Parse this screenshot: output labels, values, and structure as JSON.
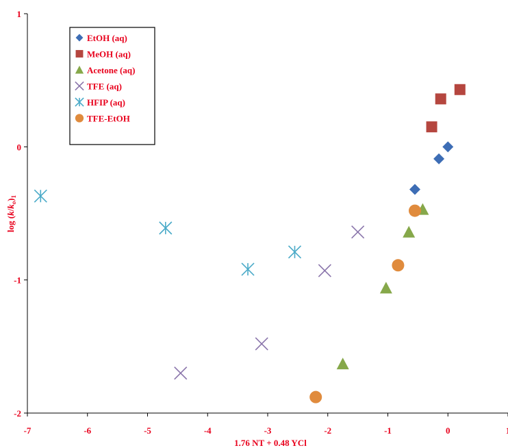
{
  "chart_data": {
    "type": "scatter",
    "title": "",
    "xlabel": "1.76 NT + 0.48 YCl",
    "ylabel": "log (k/ko)1",
    "ylabel_parts": {
      "pre": "log (",
      "k": "k",
      "slash": "/",
      "ko": "k",
      "o_sub": "o",
      "post": ")",
      "sub": "1"
    },
    "xlim": [
      -7,
      1
    ],
    "ylim": [
      -2,
      1
    ],
    "x_ticks": [
      -7,
      -6,
      -5,
      -4,
      -3,
      -2,
      -1,
      0,
      1
    ],
    "y_ticks": [
      -2,
      -1,
      0,
      1
    ],
    "grid": false,
    "legend_position": "top-left",
    "series": [
      {
        "name": "EtOH (aq)",
        "marker": "diamond",
        "color": "#3d6db5",
        "x": [
          -0.55,
          -0.15,
          0.0
        ],
        "y": [
          -0.32,
          -0.09,
          0.0
        ]
      },
      {
        "name": "MeOH (aq)",
        "marker": "square",
        "color": "#b5463f",
        "x": [
          -0.27,
          -0.12,
          0.2
        ],
        "y": [
          0.15,
          0.36,
          0.43
        ]
      },
      {
        "name": "Acetone (aq)",
        "marker": "triangle",
        "color": "#86a84a",
        "x": [
          -1.75,
          -1.03,
          -0.65,
          -0.42
        ],
        "y": [
          -1.63,
          -1.06,
          -0.64,
          -0.47
        ]
      },
      {
        "name": "TFE (aq)",
        "marker": "x",
        "color": "#8a75ab",
        "x": [
          -4.45,
          -3.1,
          -2.05,
          -1.5
        ],
        "y": [
          -1.7,
          -1.48,
          -0.93,
          -0.64
        ]
      },
      {
        "name": "HFIP (aq)",
        "marker": "asterisk",
        "color": "#4aaac8",
        "x": [
          -6.78,
          -4.7,
          -3.33,
          -2.55
        ],
        "y": [
          -0.37,
          -0.61,
          -0.92,
          -0.79
        ]
      },
      {
        "name": "TFE-EtOH",
        "marker": "circle",
        "color": "#e08b3d",
        "x": [
          -2.2,
          -0.83,
          -0.55
        ],
        "y": [
          -1.88,
          -0.89,
          -0.48
        ]
      }
    ]
  }
}
